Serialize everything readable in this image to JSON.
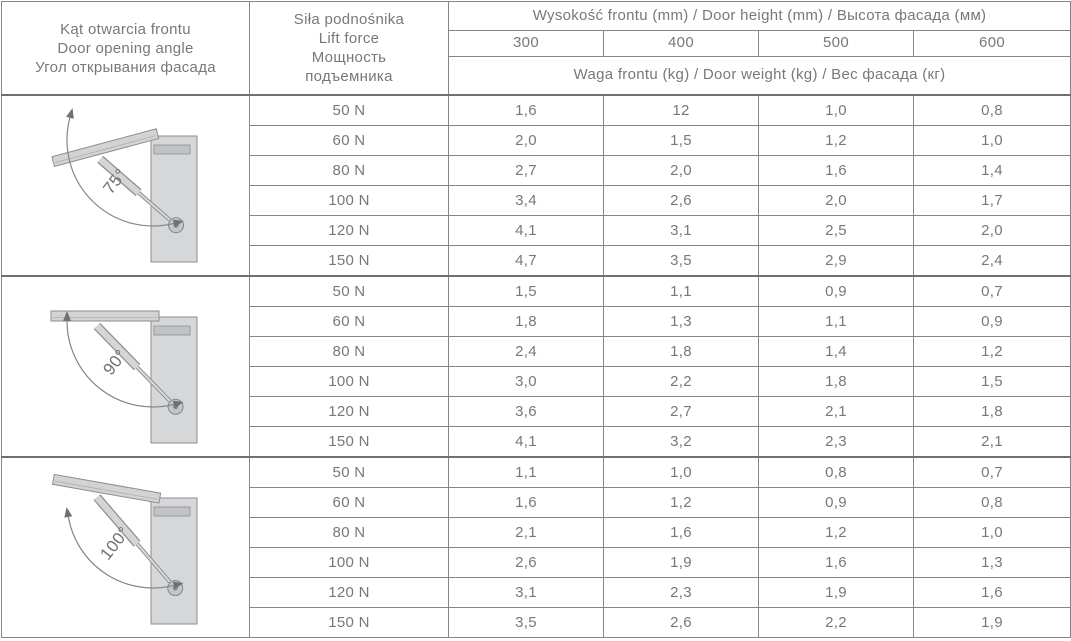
{
  "header": {
    "angle_col_lines": [
      "Kąt otwarcia frontu",
      "Door opening angle",
      "Угол  открывания фасада"
    ],
    "force_col_lines": [
      "Siła podnośnika",
      "Lift force",
      "Мощность",
      "подъемника"
    ],
    "height_title": "Wysokość frontu (mm) / Door height (mm) / Высота фасада (мм)",
    "height_values": [
      "300",
      "400",
      "500",
      "600"
    ],
    "weight_title": "Waga frontu (kg) / Door weight (kg) / Вес фасада (кг)"
  },
  "sections": [
    {
      "angle_label": "75°",
      "angle_value": 75,
      "rows": [
        {
          "force": "50 N",
          "values": [
            "1,6",
            "12",
            "1,0",
            "0,8"
          ]
        },
        {
          "force": "60 N",
          "values": [
            "2,0",
            "1,5",
            "1,2",
            "1,0"
          ]
        },
        {
          "force": "80 N",
          "values": [
            "2,7",
            "2,0",
            "1,6",
            "1,4"
          ]
        },
        {
          "force": "100 N",
          "values": [
            "3,4",
            "2,6",
            "2,0",
            "1,7"
          ]
        },
        {
          "force": "120 N",
          "values": [
            "4,1",
            "3,1",
            "2,5",
            "2,0"
          ]
        },
        {
          "force": "150 N",
          "values": [
            "4,7",
            "3,5",
            "2,9",
            "2,4"
          ]
        }
      ]
    },
    {
      "angle_label": "90°",
      "angle_value": 90,
      "rows": [
        {
          "force": "50 N",
          "values": [
            "1,5",
            "1,1",
            "0,9",
            "0,7"
          ]
        },
        {
          "force": "60 N",
          "values": [
            "1,8",
            "1,3",
            "1,1",
            "0,9"
          ]
        },
        {
          "force": "80 N",
          "values": [
            "2,4",
            "1,8",
            "1,4",
            "1,2"
          ]
        },
        {
          "force": "100 N",
          "values": [
            "3,0",
            "2,2",
            "1,8",
            "1,5"
          ]
        },
        {
          "force": "120 N",
          "values": [
            "3,6",
            "2,7",
            "2,1",
            "1,8"
          ]
        },
        {
          "force": "150 N",
          "values": [
            "4,1",
            "3,2",
            "2,3",
            "2,1"
          ]
        }
      ]
    },
    {
      "angle_label": "100°",
      "angle_value": 100,
      "rows": [
        {
          "force": "50 N",
          "values": [
            "1,1",
            "1,0",
            "0,8",
            "0,7"
          ]
        },
        {
          "force": "60 N",
          "values": [
            "1,6",
            "1,2",
            "0,9",
            "0,8"
          ]
        },
        {
          "force": "80 N",
          "values": [
            "2,1",
            "1,6",
            "1,2",
            "1,0"
          ]
        },
        {
          "force": "100 N",
          "values": [
            "2,6",
            "1,9",
            "1,6",
            "1,3"
          ]
        },
        {
          "force": "120 N",
          "values": [
            "3,1",
            "2,3",
            "1,9",
            "1,6"
          ]
        },
        {
          "force": "150 N",
          "values": [
            "3,5",
            "2,6",
            "2,2",
            "1,9"
          ]
        }
      ]
    }
  ],
  "colors": {
    "border": "#85868a",
    "border_heavy": "#6f7073",
    "text": "#77787b",
    "cabinet_fill": "#d6d7d9",
    "door_fill": "#d2d3d5"
  }
}
